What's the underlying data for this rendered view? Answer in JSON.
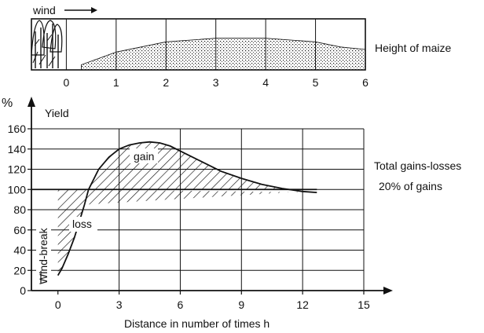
{
  "chart_data": [
    {
      "type": "area",
      "panel": "maize height profile",
      "wind_label": "wind",
      "side_label": "Height of maize",
      "x_ticks": [
        0,
        1,
        2,
        3,
        4,
        5,
        6
      ],
      "xlim": [
        -0.7,
        6
      ],
      "profile": {
        "x": [
          0.3,
          1,
          2,
          3,
          4,
          5,
          5.5,
          6
        ],
        "y": [
          0.1,
          0.35,
          0.55,
          0.62,
          0.62,
          0.55,
          0.45,
          0.4
        ]
      }
    },
    {
      "type": "line",
      "ylabel_symbol": "%",
      "ylabel": "Yield",
      "xlabel": "Distance in number of times h",
      "x_ticks": [
        0,
        3,
        6,
        9,
        12,
        15
      ],
      "x_tick_labels": [
        "0",
        "3",
        "6",
        "9",
        "12",
        "15"
      ],
      "y_ticks": [
        0,
        20,
        40,
        60,
        80,
        100,
        120,
        140,
        160
      ],
      "xlim": [
        -1.3,
        15
      ],
      "ylim": [
        0,
        160
      ],
      "grid": true,
      "reference_y": 100,
      "series": [
        {
          "x": [
            0,
            0.2,
            0.5,
            0.8,
            1.0,
            1.3,
            1.5,
            2,
            2.5,
            3,
            3.5,
            4,
            4.5,
            5,
            5.5,
            6,
            7,
            8,
            9,
            10,
            11,
            12,
            12.7
          ],
          "values": [
            15,
            22,
            36,
            52,
            65,
            85,
            100,
            120,
            132,
            140,
            144,
            146,
            147,
            146,
            143,
            138,
            128,
            118,
            111,
            105,
            101,
            98,
            97
          ]
        }
      ],
      "annotations": {
        "gain": "gain",
        "loss": "loss",
        "windbreak": "Wind-break",
        "total": "Total gains-losses",
        "percent": "20% of gains"
      }
    }
  ]
}
